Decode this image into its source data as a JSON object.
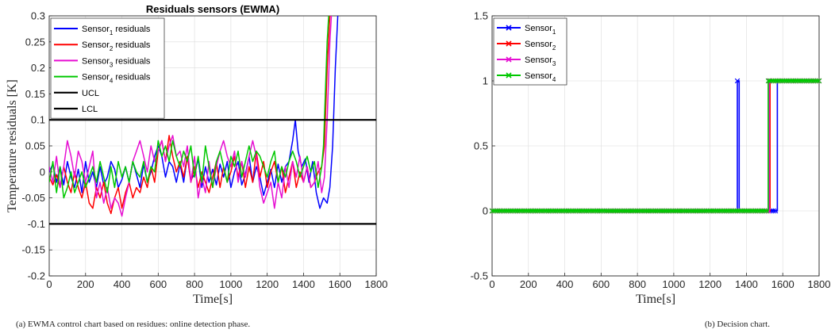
{
  "chart_data": [
    {
      "type": "line",
      "title": "Residuals sensors (EWMA)",
      "xlabel": "Time[s]",
      "ylabel": "Temperature residuals [K]",
      "xlim": [
        0,
        1800
      ],
      "ylim": [
        -0.2,
        0.3
      ],
      "xticks": [
        "0",
        "200",
        "400",
        "600",
        "800",
        "1000",
        "1200",
        "1400",
        "1600",
        "1800"
      ],
      "yticks": [
        "-0.2",
        "-0.15",
        "-0.1",
        "-0.05",
        "0",
        "0.05",
        "0.1",
        "0.15",
        "0.2",
        "0.25",
        "0.3"
      ],
      "grid": true,
      "legend_position": "top-left",
      "caption": "(a) EWMA control chart based on residues: online detection phase.",
      "control_limits": [
        {
          "name": "UCL",
          "value": 0.1,
          "color": "#000000"
        },
        {
          "name": "LCL",
          "value": -0.1,
          "color": "#000000"
        }
      ],
      "series": [
        {
          "name": "Sensor",
          "sub": "1",
          "suffix": " residuals",
          "color": "#0000ff",
          "x": [
            0,
            20,
            40,
            60,
            80,
            100,
            120,
            140,
            160,
            180,
            200,
            220,
            240,
            260,
            280,
            300,
            320,
            340,
            360,
            380,
            400,
            420,
            440,
            460,
            480,
            500,
            520,
            540,
            560,
            580,
            600,
            620,
            640,
            660,
            680,
            700,
            720,
            740,
            760,
            780,
            800,
            820,
            840,
            860,
            880,
            900,
            920,
            940,
            960,
            980,
            1000,
            1020,
            1040,
            1060,
            1080,
            1100,
            1120,
            1140,
            1160,
            1180,
            1200,
            1220,
            1240,
            1260,
            1280,
            1300,
            1320,
            1340,
            1355,
            1370,
            1390,
            1410,
            1430,
            1450,
            1470,
            1490,
            1510,
            1530,
            1545,
            1560,
            1575,
            1590
          ],
          "y": [
            0,
            0.015,
            -0.02,
            0.01,
            -0.025,
            0.02,
            -0.01,
            -0.03,
            0.005,
            -0.04,
            0.02,
            -0.02,
            0,
            -0.03,
            0.01,
            -0.025,
            -0.01,
            0.02,
            0.005,
            -0.03,
            -0.015,
            0.01,
            -0.02,
            0.02,
            -0.005,
            -0.03,
            0.015,
            -0.02,
            0,
            0.03,
            0.05,
            0.03,
            -0.01,
            0.02,
            0.01,
            -0.02,
            0.015,
            -0.02,
            0.03,
            -0.015,
            -0.005,
            0.025,
            -0.03,
            0.01,
            -0.02,
            0.005,
            -0.025,
            0.015,
            -0.01,
            0.02,
            -0.03,
            0,
            0.02,
            -0.025,
            -0.005,
            0.03,
            -0.02,
            0.01,
            -0.01,
            -0.045,
            -0.02,
            0.005,
            -0.03,
            0.015,
            -0.02,
            0.01,
            0.02,
            0.06,
            0.1,
            0.04,
            0.01,
            0.025,
            -0.02,
            0.02,
            -0.04,
            -0.07,
            -0.05,
            -0.06,
            -0.03,
            0.05,
            0.2,
            0.31
          ]
        },
        {
          "name": "Sensor",
          "sub": "2",
          "suffix": " residuals",
          "color": "#ff0000",
          "x": [
            0,
            20,
            40,
            60,
            80,
            100,
            120,
            140,
            160,
            180,
            200,
            220,
            240,
            260,
            280,
            300,
            320,
            340,
            360,
            380,
            400,
            420,
            440,
            460,
            480,
            500,
            520,
            540,
            560,
            580,
            600,
            620,
            640,
            660,
            680,
            700,
            720,
            740,
            760,
            780,
            800,
            820,
            840,
            860,
            880,
            900,
            920,
            940,
            960,
            980,
            1000,
            1020,
            1040,
            1060,
            1080,
            1100,
            1120,
            1140,
            1160,
            1180,
            1200,
            1220,
            1240,
            1260,
            1280,
            1300,
            1320,
            1340,
            1360,
            1380,
            1400,
            1420,
            1440,
            1460,
            1480,
            1500,
            1515,
            1530,
            1545,
            1555
          ],
          "y": [
            -0.01,
            -0.025,
            -0.005,
            -0.03,
            0.01,
            -0.02,
            -0.04,
            0,
            -0.03,
            -0.05,
            -0.02,
            -0.06,
            -0.07,
            -0.03,
            -0.05,
            -0.02,
            -0.06,
            -0.08,
            -0.05,
            -0.03,
            -0.07,
            -0.04,
            -0.02,
            -0.05,
            -0.03,
            -0.04,
            -0.01,
            -0.03,
            0.01,
            -0.02,
            0.04,
            0.06,
            0.02,
            0.07,
            0.03,
            0,
            0.02,
            -0.01,
            0.03,
            -0.02,
            0.01,
            -0.03,
            0,
            -0.02,
            -0.04,
            -0.01,
            0.02,
            -0.03,
            0.01,
            -0.02,
            0,
            0.03,
            -0.01,
            0.02,
            -0.03,
            0.01,
            -0.02,
            0.04,
            -0.01,
            0.02,
            -0.03,
            0,
            0.02,
            -0.02,
            0.01,
            -0.04,
            -0.01,
            0.02,
            -0.03,
            0,
            -0.02,
            0.01,
            -0.03,
            -0.02,
            0,
            0.01,
            0.05,
            0.2,
            0.3,
            0.31
          ]
        },
        {
          "name": "Sensor",
          "sub": "3",
          "suffix": " residuals",
          "color": "#e60ed2",
          "x": [
            0,
            20,
            40,
            60,
            80,
            100,
            120,
            140,
            160,
            180,
            200,
            220,
            240,
            260,
            280,
            300,
            320,
            340,
            360,
            380,
            400,
            420,
            440,
            460,
            480,
            500,
            520,
            540,
            560,
            580,
            600,
            620,
            640,
            660,
            680,
            700,
            720,
            740,
            760,
            780,
            800,
            820,
            840,
            860,
            880,
            900,
            920,
            940,
            960,
            980,
            1000,
            1020,
            1040,
            1060,
            1080,
            1100,
            1120,
            1140,
            1160,
            1180,
            1200,
            1220,
            1240,
            1260,
            1280,
            1300,
            1320,
            1340,
            1360,
            1380,
            1400,
            1420,
            1440,
            1460,
            1480,
            1500,
            1515,
            1530,
            1545,
            1555
          ],
          "y": [
            0.01,
            -0.02,
            0.03,
            -0.03,
            0.01,
            0.06,
            0.03,
            -0.01,
            0.04,
            0.02,
            -0.02,
            0.01,
            0.04,
            -0.05,
            -0.02,
            -0.06,
            -0.03,
            -0.07,
            -0.05,
            -0.06,
            -0.085,
            -0.05,
            -0.02,
            0.02,
            0.04,
            0.06,
            0.03,
            0,
            0.05,
            0.02,
            0.04,
            0.06,
            0.02,
            0.05,
            0.07,
            0.03,
            0.04,
            0.01,
            0.05,
            -0.02,
            0.03,
            -0.05,
            -0.01,
            -0.04,
            0.02,
            -0.03,
            0.01,
            0.04,
            0.06,
            0.03,
            0.01,
            0.04,
            -0.02,
            0.02,
            -0.01,
            0.03,
            0.06,
            0.03,
            -0.03,
            -0.06,
            -0.04,
            -0.02,
            -0.07,
            -0.02,
            -0.05,
            0.01,
            -0.03,
            0.02,
            -0.01,
            0.03,
            -0.02,
            0.01,
            -0.03,
            -0.02,
            0.02,
            -0.04,
            -0.01,
            0.1,
            0.25,
            0.31
          ]
        },
        {
          "name": "Sensor",
          "sub": "4",
          "suffix": " residuals",
          "color": "#00c800",
          "x": [
            0,
            20,
            40,
            60,
            80,
            100,
            120,
            140,
            160,
            180,
            200,
            220,
            240,
            260,
            280,
            300,
            320,
            340,
            360,
            380,
            400,
            420,
            440,
            460,
            480,
            500,
            520,
            540,
            560,
            580,
            600,
            620,
            640,
            660,
            680,
            700,
            720,
            740,
            760,
            780,
            800,
            820,
            840,
            860,
            880,
            900,
            920,
            940,
            960,
            980,
            1000,
            1020,
            1040,
            1060,
            1080,
            1100,
            1120,
            1140,
            1160,
            1180,
            1200,
            1220,
            1240,
            1260,
            1280,
            1300,
            1320,
            1340,
            1360,
            1380,
            1400,
            1420,
            1440,
            1460,
            1480,
            1500,
            1510,
            1520,
            1530,
            1540
          ],
          "y": [
            -0.02,
            0.02,
            -0.04,
            0.01,
            -0.05,
            -0.03,
            0,
            -0.04,
            -0.02,
            0,
            -0.03,
            -0.01,
            0.01,
            -0.02,
            0.02,
            -0.01,
            -0.04,
            0.01,
            -0.03,
            0.02,
            -0.01,
            0.01,
            -0.02,
            0.02,
            0,
            -0.01,
            0.02,
            -0.02,
            0.01,
            0,
            0.06,
            0.03,
            0.05,
            0.02,
            0.06,
            0.03,
            0.01,
            0.04,
            0.02,
            0.05,
            -0.01,
            0.03,
            -0.02,
            0.05,
            0.01,
            -0.03,
            0.02,
            0.04,
            0.01,
            -0.02,
            0.03,
            0.01,
            0.04,
            -0.01,
            0.02,
            0.05,
            0.02,
            0.04,
            0.03,
            0.01,
            -0.01,
            0.02,
            0.04,
            -0.02,
            0.01,
            -0.01,
            0.02,
            0.04,
            0.02,
            -0.01,
            0.01,
            0.03,
            0,
            0.02,
            -0.03,
            0.01,
            0.05,
            0.15,
            0.25,
            0.31
          ]
        }
      ]
    },
    {
      "type": "line",
      "title": "",
      "xlabel": "Time[s]",
      "ylabel": "",
      "xlim": [
        0,
        1800
      ],
      "ylim": [
        -0.5,
        1.5
      ],
      "xticks": [
        "0",
        "200",
        "400",
        "600",
        "800",
        "1000",
        "1200",
        "1400",
        "1600",
        "1800"
      ],
      "yticks": [
        "-0.5",
        "0",
        "0.5",
        "1",
        "1.5"
      ],
      "grid": true,
      "legend_position": "top-left",
      "marker": "x",
      "marker_step": 10,
      "caption": "(b) Decision chart.",
      "series": [
        {
          "name": "Sensor",
          "sub": "1",
          "color": "#0000ff",
          "steps": [
            [
              0,
              0
            ],
            [
              1350,
              1
            ],
            [
              1360,
              0
            ],
            [
              1570,
              1
            ]
          ]
        },
        {
          "name": "Sensor",
          "sub": "2",
          "color": "#ff0000",
          "steps": [
            [
              0,
              0
            ],
            [
              1530,
              1
            ]
          ]
        },
        {
          "name": "Sensor",
          "sub": "3",
          "color": "#e60ed2",
          "steps": [
            [
              0,
              0
            ],
            [
              1525,
              1
            ]
          ]
        },
        {
          "name": "Sensor",
          "sub": "4",
          "color": "#00c800",
          "steps": [
            [
              0,
              0
            ],
            [
              1520,
              1
            ]
          ]
        }
      ]
    }
  ]
}
